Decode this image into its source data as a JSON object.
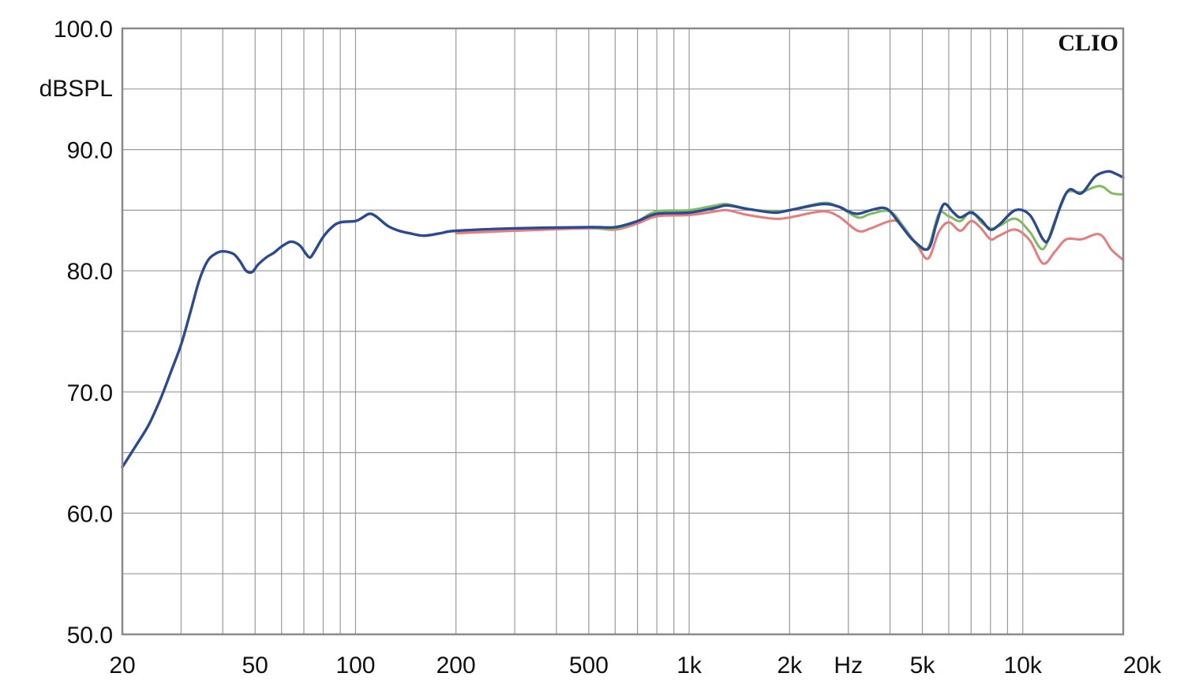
{
  "chart_data": {
    "type": "line",
    "brand": "CLIO",
    "ylabel": "dBSPL",
    "xunit": "Hz",
    "xscale": "log",
    "xlim": [
      20,
      20000
    ],
    "ylim": [
      50,
      100
    ],
    "grid": true,
    "yticks": [
      {
        "value": 100,
        "label": "100.0"
      },
      {
        "value": 90,
        "label": "90.0"
      },
      {
        "value": 80,
        "label": "80.0"
      },
      {
        "value": 70,
        "label": "70.0"
      },
      {
        "value": 60,
        "label": "60.0"
      },
      {
        "value": 50,
        "label": "50.0"
      }
    ],
    "xticks": [
      {
        "value": 20,
        "label": "20"
      },
      {
        "value": 50,
        "label": "50"
      },
      {
        "value": 100,
        "label": "100"
      },
      {
        "value": 200,
        "label": "200"
      },
      {
        "value": 500,
        "label": "500"
      },
      {
        "value": 1000,
        "label": "1k"
      },
      {
        "value": 2000,
        "label": "2k"
      },
      {
        "value": 5000,
        "label": "5k"
      },
      {
        "value": 10000,
        "label": "10k"
      },
      {
        "value": 20000,
        "label": "20k"
      }
    ],
    "series": [
      {
        "color": "#e87c7c",
        "points": [
          [
            200,
            83.1
          ],
          [
            300,
            83.3
          ],
          [
            500,
            83.5
          ],
          [
            600,
            83.4
          ],
          [
            700,
            83.9
          ],
          [
            800,
            84.5
          ],
          [
            1000,
            84.6
          ],
          [
            1200,
            84.9
          ],
          [
            1300,
            85.0
          ],
          [
            1500,
            84.6
          ],
          [
            1800,
            84.3
          ],
          [
            2000,
            84.4
          ],
          [
            2500,
            84.9
          ],
          [
            2800,
            84.5
          ],
          [
            3200,
            83.3
          ],
          [
            3500,
            83.5
          ],
          [
            4000,
            84.1
          ],
          [
            4300,
            83.9
          ],
          [
            4800,
            82.2
          ],
          [
            5200,
            81.0
          ],
          [
            5600,
            83.2
          ],
          [
            6000,
            84.0
          ],
          [
            6500,
            83.3
          ],
          [
            7000,
            84.1
          ],
          [
            7500,
            83.5
          ],
          [
            8000,
            82.6
          ],
          [
            8500,
            82.9
          ],
          [
            9500,
            83.4
          ],
          [
            10500,
            82.5
          ],
          [
            11500,
            80.6
          ],
          [
            12500,
            81.6
          ],
          [
            13500,
            82.6
          ],
          [
            15000,
            82.6
          ],
          [
            17000,
            83.0
          ],
          [
            18500,
            81.7
          ],
          [
            20000,
            80.9
          ]
        ]
      },
      {
        "color": "#7dbd5a",
        "points": [
          [
            500,
            83.6
          ],
          [
            600,
            83.5
          ],
          [
            700,
            84.1
          ],
          [
            800,
            84.9
          ],
          [
            1000,
            85.0
          ],
          [
            1200,
            85.4
          ],
          [
            1300,
            85.5
          ],
          [
            1500,
            85.1
          ],
          [
            1800,
            84.9
          ],
          [
            2000,
            85.0
          ],
          [
            2500,
            85.6
          ],
          [
            2800,
            85.3
          ],
          [
            3200,
            84.4
          ],
          [
            3500,
            84.7
          ],
          [
            4000,
            84.9
          ],
          [
            4400,
            83.6
          ],
          [
            4800,
            82.2
          ],
          [
            5200,
            81.9
          ],
          [
            5600,
            84.7
          ],
          [
            6000,
            84.5
          ],
          [
            6500,
            84.1
          ],
          [
            7000,
            84.9
          ],
          [
            7500,
            84.0
          ],
          [
            8000,
            83.5
          ],
          [
            8500,
            83.7
          ],
          [
            9500,
            84.3
          ],
          [
            10500,
            83.2
          ],
          [
            11500,
            81.8
          ],
          [
            12500,
            84.2
          ],
          [
            13500,
            86.4
          ],
          [
            15000,
            86.5
          ],
          [
            17000,
            87.0
          ],
          [
            18500,
            86.4
          ],
          [
            20000,
            86.3
          ]
        ]
      },
      {
        "color": "#2a4a96",
        "points": [
          [
            20,
            63.8
          ],
          [
            22,
            65.6
          ],
          [
            24,
            67.3
          ],
          [
            26,
            69.4
          ],
          [
            28,
            71.7
          ],
          [
            30,
            73.9
          ],
          [
            32,
            76.6
          ],
          [
            34,
            79.2
          ],
          [
            36,
            80.8
          ],
          [
            38,
            81.4
          ],
          [
            40,
            81.6
          ],
          [
            43,
            81.4
          ],
          [
            45,
            80.8
          ],
          [
            47,
            80.0
          ],
          [
            49,
            79.9
          ],
          [
            51,
            80.5
          ],
          [
            54,
            81.1
          ],
          [
            57,
            81.5
          ],
          [
            60,
            82.0
          ],
          [
            64,
            82.4
          ],
          [
            68,
            82.1
          ],
          [
            71,
            81.4
          ],
          [
            73,
            81.1
          ],
          [
            75,
            81.5
          ],
          [
            80,
            82.8
          ],
          [
            85,
            83.6
          ],
          [
            90,
            84.0
          ],
          [
            100,
            84.1
          ],
          [
            105,
            84.4
          ],
          [
            110,
            84.7
          ],
          [
            115,
            84.5
          ],
          [
            125,
            83.7
          ],
          [
            135,
            83.3
          ],
          [
            145,
            83.1
          ],
          [
            160,
            82.9
          ],
          [
            180,
            83.1
          ],
          [
            200,
            83.3
          ],
          [
            300,
            83.5
          ],
          [
            500,
            83.6
          ],
          [
            600,
            83.6
          ],
          [
            700,
            84.1
          ],
          [
            800,
            84.7
          ],
          [
            1000,
            84.8
          ],
          [
            1200,
            85.2
          ],
          [
            1300,
            85.4
          ],
          [
            1500,
            85.1
          ],
          [
            1800,
            84.8
          ],
          [
            2000,
            85.0
          ],
          [
            2500,
            85.5
          ],
          [
            2800,
            85.3
          ],
          [
            3000,
            84.9
          ],
          [
            3200,
            84.7
          ],
          [
            3500,
            85.0
          ],
          [
            3800,
            85.2
          ],
          [
            4000,
            84.9
          ],
          [
            4300,
            83.8
          ],
          [
            4700,
            82.5
          ],
          [
            5200,
            81.8
          ],
          [
            5500,
            83.8
          ],
          [
            5800,
            85.5
          ],
          [
            6200,
            84.8
          ],
          [
            6500,
            84.4
          ],
          [
            7000,
            84.8
          ],
          [
            7500,
            84.2
          ],
          [
            8000,
            83.4
          ],
          [
            8500,
            83.8
          ],
          [
            9500,
            85.0
          ],
          [
            10500,
            84.6
          ],
          [
            11500,
            82.6
          ],
          [
            12000,
            82.7
          ],
          [
            13000,
            85.4
          ],
          [
            13800,
            86.7
          ],
          [
            15000,
            86.4
          ],
          [
            16500,
            87.8
          ],
          [
            18000,
            88.2
          ],
          [
            19000,
            88.0
          ],
          [
            20000,
            87.7
          ]
        ]
      }
    ]
  }
}
